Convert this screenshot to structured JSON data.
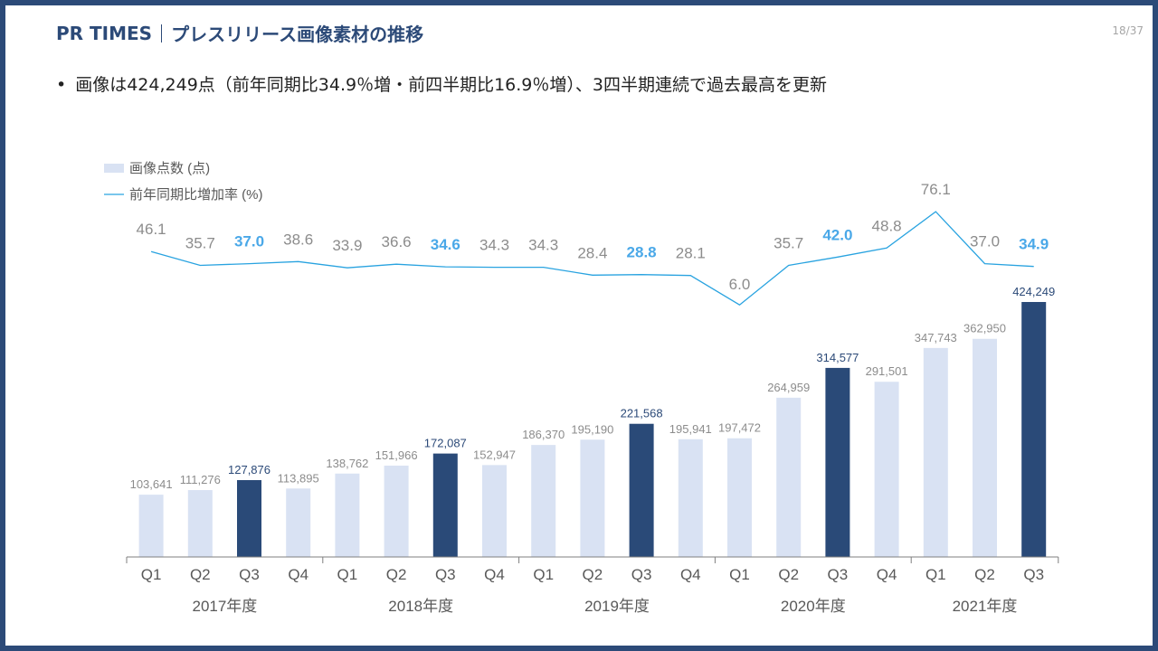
{
  "header": {
    "brand": "PR TIMES",
    "title": "プレスリリース画像素材の推移",
    "page": "18/37"
  },
  "bullet": {
    "marker": "•",
    "text": "画像は424,249点（前年同期比34.9％増・前四半期比16.9％増）、3四半期連続で過去最高を更新"
  },
  "colors": {
    "frame": "#2c4a78",
    "bar_default": "#d9e2f3",
    "bar_highlight": "#2a4a78",
    "line": "#29a3e0",
    "line_label_highlight": "#4aa8e8",
    "label_grey": "#8c8c8c",
    "label_dark": "#2c4a78"
  },
  "chart_data": {
    "type": "bar",
    "legend": [
      {
        "name": "画像点数 (点)",
        "kind": "bar"
      },
      {
        "name": "前年同期比増加率 (%)",
        "kind": "line"
      }
    ],
    "categories": [
      "Q1",
      "Q2",
      "Q3",
      "Q4",
      "Q1",
      "Q2",
      "Q3",
      "Q4",
      "Q1",
      "Q2",
      "Q3",
      "Q4",
      "Q1",
      "Q2",
      "Q3",
      "Q4",
      "Q1",
      "Q2",
      "Q3"
    ],
    "year_groups": [
      {
        "label": "2017年度",
        "count": 4
      },
      {
        "label": "2018年度",
        "count": 4
      },
      {
        "label": "2019年度",
        "count": 4
      },
      {
        "label": "2020年度",
        "count": 4
      },
      {
        "label": "2021年度",
        "count": 3
      }
    ],
    "series": [
      {
        "name": "画像点数 (点)",
        "values": [
          103641,
          111276,
          127876,
          113895,
          138762,
          151966,
          172087,
          152947,
          186370,
          195190,
          221568,
          195941,
          197472,
          264959,
          314577,
          291501,
          347743,
          362950,
          424249
        ],
        "labels": [
          "103,641",
          "111,276",
          "127,876",
          "113,895",
          "138,762",
          "151,966",
          "172,087",
          "152,947",
          "186,370",
          "195,190",
          "221,568",
          "195,941",
          "197,472",
          "264,959",
          "314,577",
          "291,501",
          "347,743",
          "362,950",
          "424,249"
        ],
        "highlight": [
          false,
          false,
          true,
          false,
          false,
          false,
          true,
          false,
          false,
          false,
          true,
          false,
          false,
          false,
          true,
          false,
          false,
          false,
          true
        ]
      },
      {
        "name": "前年同期比増加率 (%)",
        "values": [
          46.1,
          35.7,
          37.0,
          38.6,
          33.9,
          36.6,
          34.6,
          34.3,
          34.3,
          28.4,
          28.8,
          28.1,
          6.0,
          35.7,
          42.0,
          48.8,
          76.1,
          37.0,
          34.9
        ],
        "labels": [
          "46.1",
          "35.7",
          "37.0",
          "38.6",
          "33.9",
          "36.6",
          "34.6",
          "34.3",
          "34.3",
          "28.4",
          "28.8",
          "28.1",
          "6.0",
          "35.7",
          "42.0",
          "48.8",
          "76.1",
          "37.0",
          "34.9"
        ],
        "highlight": [
          false,
          false,
          true,
          false,
          false,
          false,
          true,
          false,
          false,
          false,
          true,
          false,
          false,
          false,
          true,
          false,
          false,
          false,
          true
        ]
      }
    ]
  }
}
